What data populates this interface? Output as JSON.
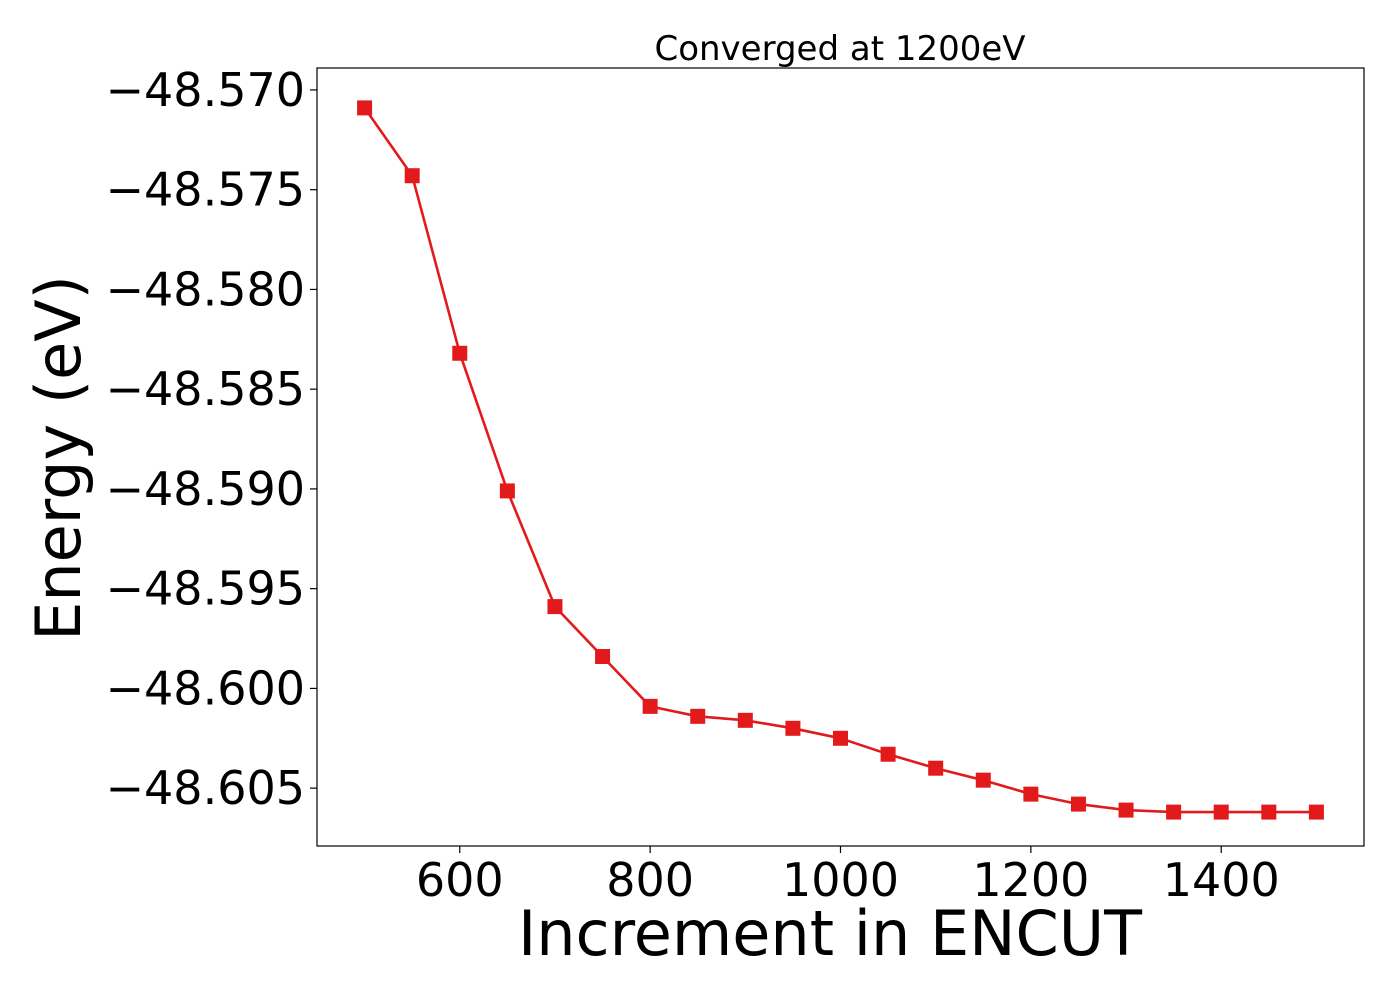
{
  "chart_data": {
    "type": "line",
    "title": "Converged at 1200eV",
    "xlabel": "Increment in ENCUT",
    "ylabel": "Energy (eV)",
    "xlim": [
      450,
      1550
    ],
    "ylim": [
      -48.6079,
      -48.5689
    ],
    "xticks": [
      600,
      800,
      1000,
      1200,
      1400
    ],
    "yticks": [
      -48.57,
      -48.575,
      -48.58,
      -48.585,
      -48.59,
      -48.595,
      -48.6,
      -48.605
    ],
    "xtick_labels": [
      "600",
      "800",
      "1000",
      "1200",
      "1400"
    ],
    "ytick_labels": [
      "−48.570",
      "−48.575",
      "−48.580",
      "−48.585",
      "−48.590",
      "−48.595",
      "−48.600",
      "−48.605"
    ],
    "grid": false,
    "series": [
      {
        "color": "#e31a1c",
        "marker": "square",
        "x": [
          500,
          550,
          600,
          650,
          700,
          750,
          800,
          850,
          900,
          950,
          1000,
          1050,
          1100,
          1150,
          1200,
          1250,
          1300,
          1350,
          1400,
          1450,
          1500
        ],
        "y": [
          -48.5709,
          -48.5743,
          -48.5832,
          -48.5901,
          -48.5959,
          -48.5984,
          -48.6009,
          -48.6014,
          -48.6016,
          -48.602,
          -48.6025,
          -48.6033,
          -48.604,
          -48.6046,
          -48.6053,
          -48.6058,
          -48.6061,
          -48.6062,
          -48.6062,
          -48.6062,
          -48.6062
        ]
      }
    ]
  }
}
